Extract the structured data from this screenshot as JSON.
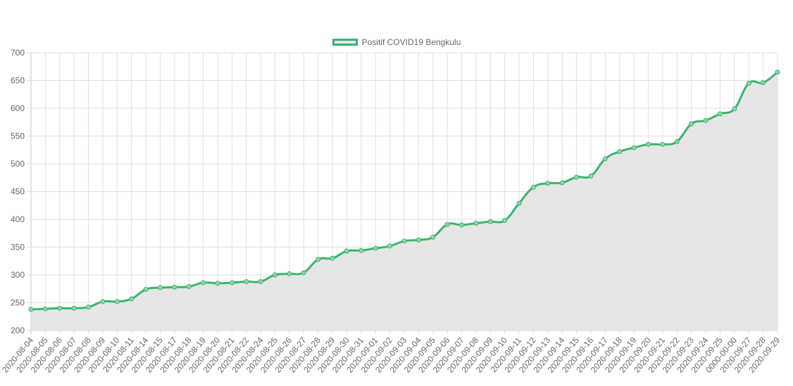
{
  "chart_data": {
    "type": "line",
    "title": "",
    "xlabel": "",
    "ylabel": "",
    "ylim": [
      200,
      700
    ],
    "yticks": [
      200,
      250,
      300,
      350,
      400,
      450,
      500,
      550,
      600,
      650,
      700
    ],
    "grid": true,
    "legend_position": "top",
    "fill": true,
    "colors": {
      "line": "#3cb371",
      "fill": "#e5e5e5",
      "grid": "#e0e0e0",
      "text": "#666666"
    },
    "categories": [
      "2020-08-04",
      "2020-08-05",
      "2020-08-06",
      "2020-08-07",
      "2020-08-08",
      "2020-08-09",
      "2020-08-10",
      "2020-08-11",
      "2020-08-14",
      "2020-08-15",
      "2020-08-17",
      "2020-08-18",
      "2020-08-19",
      "2020-08-20",
      "2020-08-21",
      "2020-08-22",
      "2020-08-24",
      "2020-08-25",
      "2020-08-26",
      "2020-08-27",
      "2020-08-28",
      "2020-08-29",
      "2020-08-30",
      "2020-08-31",
      "2020-09-01",
      "2020-09-02",
      "2020-09-03",
      "2020-09-04",
      "2020-09-05",
      "2020-09-06",
      "2020-09-07",
      "2020-09-08",
      "2020-09-09",
      "2020-09-10",
      "2020-09-11",
      "2020-09-12",
      "2020-09-13",
      "2020-09-14",
      "2020-09-15",
      "2020-09-16",
      "2020-09-17",
      "2020-09-18",
      "2020-09-19",
      "2020-09-20",
      "2020-09-21",
      "2020-09-22",
      "2020-09-23",
      "2020-09-24",
      "2020-09-25",
      "0000-00-00",
      "2020-09-27",
      "2020-09-28",
      "2020-09-29"
    ],
    "series": [
      {
        "name": "Positif COVID19 Bengkulu",
        "values": [
          238,
          239,
          240,
          240,
          242,
          252,
          252,
          257,
          274,
          277,
          278,
          279,
          286,
          285,
          286,
          288,
          288,
          300,
          302,
          304,
          328,
          330,
          343,
          344,
          348,
          352,
          361,
          363,
          368,
          391,
          390,
          393,
          396,
          398,
          429,
          458,
          465,
          466,
          476,
          478,
          509,
          522,
          529,
          535,
          535,
          540,
          572,
          578,
          590,
          599,
          645,
          646,
          665
        ]
      }
    ]
  }
}
